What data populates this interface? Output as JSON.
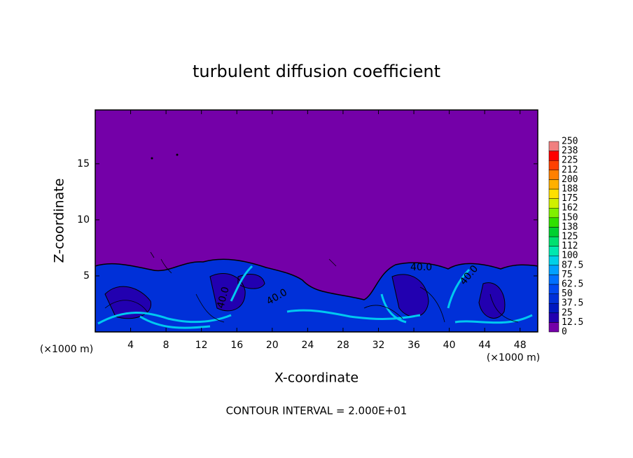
{
  "chart_data": {
    "type": "contour",
    "title": "turbulent diffusion coefficient",
    "x_label": "X-coordinate",
    "y_label": "Z-coordinate",
    "x_unit": "(×1000 m)",
    "xlim": [
      0,
      50
    ],
    "xticks": [
      4,
      8,
      12,
      16,
      20,
      24,
      28,
      32,
      36,
      40,
      44,
      48
    ],
    "ylim": [
      0,
      19.8
    ],
    "yticks": [
      5,
      10,
      15
    ],
    "contour_labels": [
      "40.0",
      "40.0",
      "40.0",
      "40.0"
    ],
    "footer": "CONTOUR INTERVAL = 2.000E+01",
    "colorbar": {
      "levels": [
        0,
        12.5,
        25,
        37.5,
        50,
        62.5,
        75,
        87.5,
        100,
        {
          "value": 112.5,
          "label": "112"
        },
        125,
        {
          "value": 137.5,
          "label": "138"
        },
        150,
        {
          "value": 162.5,
          "label": "162"
        },
        175,
        {
          "value": 187.5,
          "label": "188"
        },
        200,
        {
          "value": 212.5,
          "label": "212"
        },
        225,
        {
          "value": 237.5,
          "label": "238"
        },
        250
      ],
      "colors": [
        "#7400a8",
        "#2200b0",
        "#0018c0",
        "#0030d8",
        "#0048f0",
        "#0070ff",
        "#00a0ff",
        "#00d0e8",
        "#00e8b0",
        "#00e070",
        "#00d030",
        "#30e000",
        "#80f000",
        "#d0f000",
        "#ffe000",
        "#ffb000",
        "#ff8000",
        "#ff4000",
        "#ff0000",
        "#f08080"
      ]
    }
  }
}
